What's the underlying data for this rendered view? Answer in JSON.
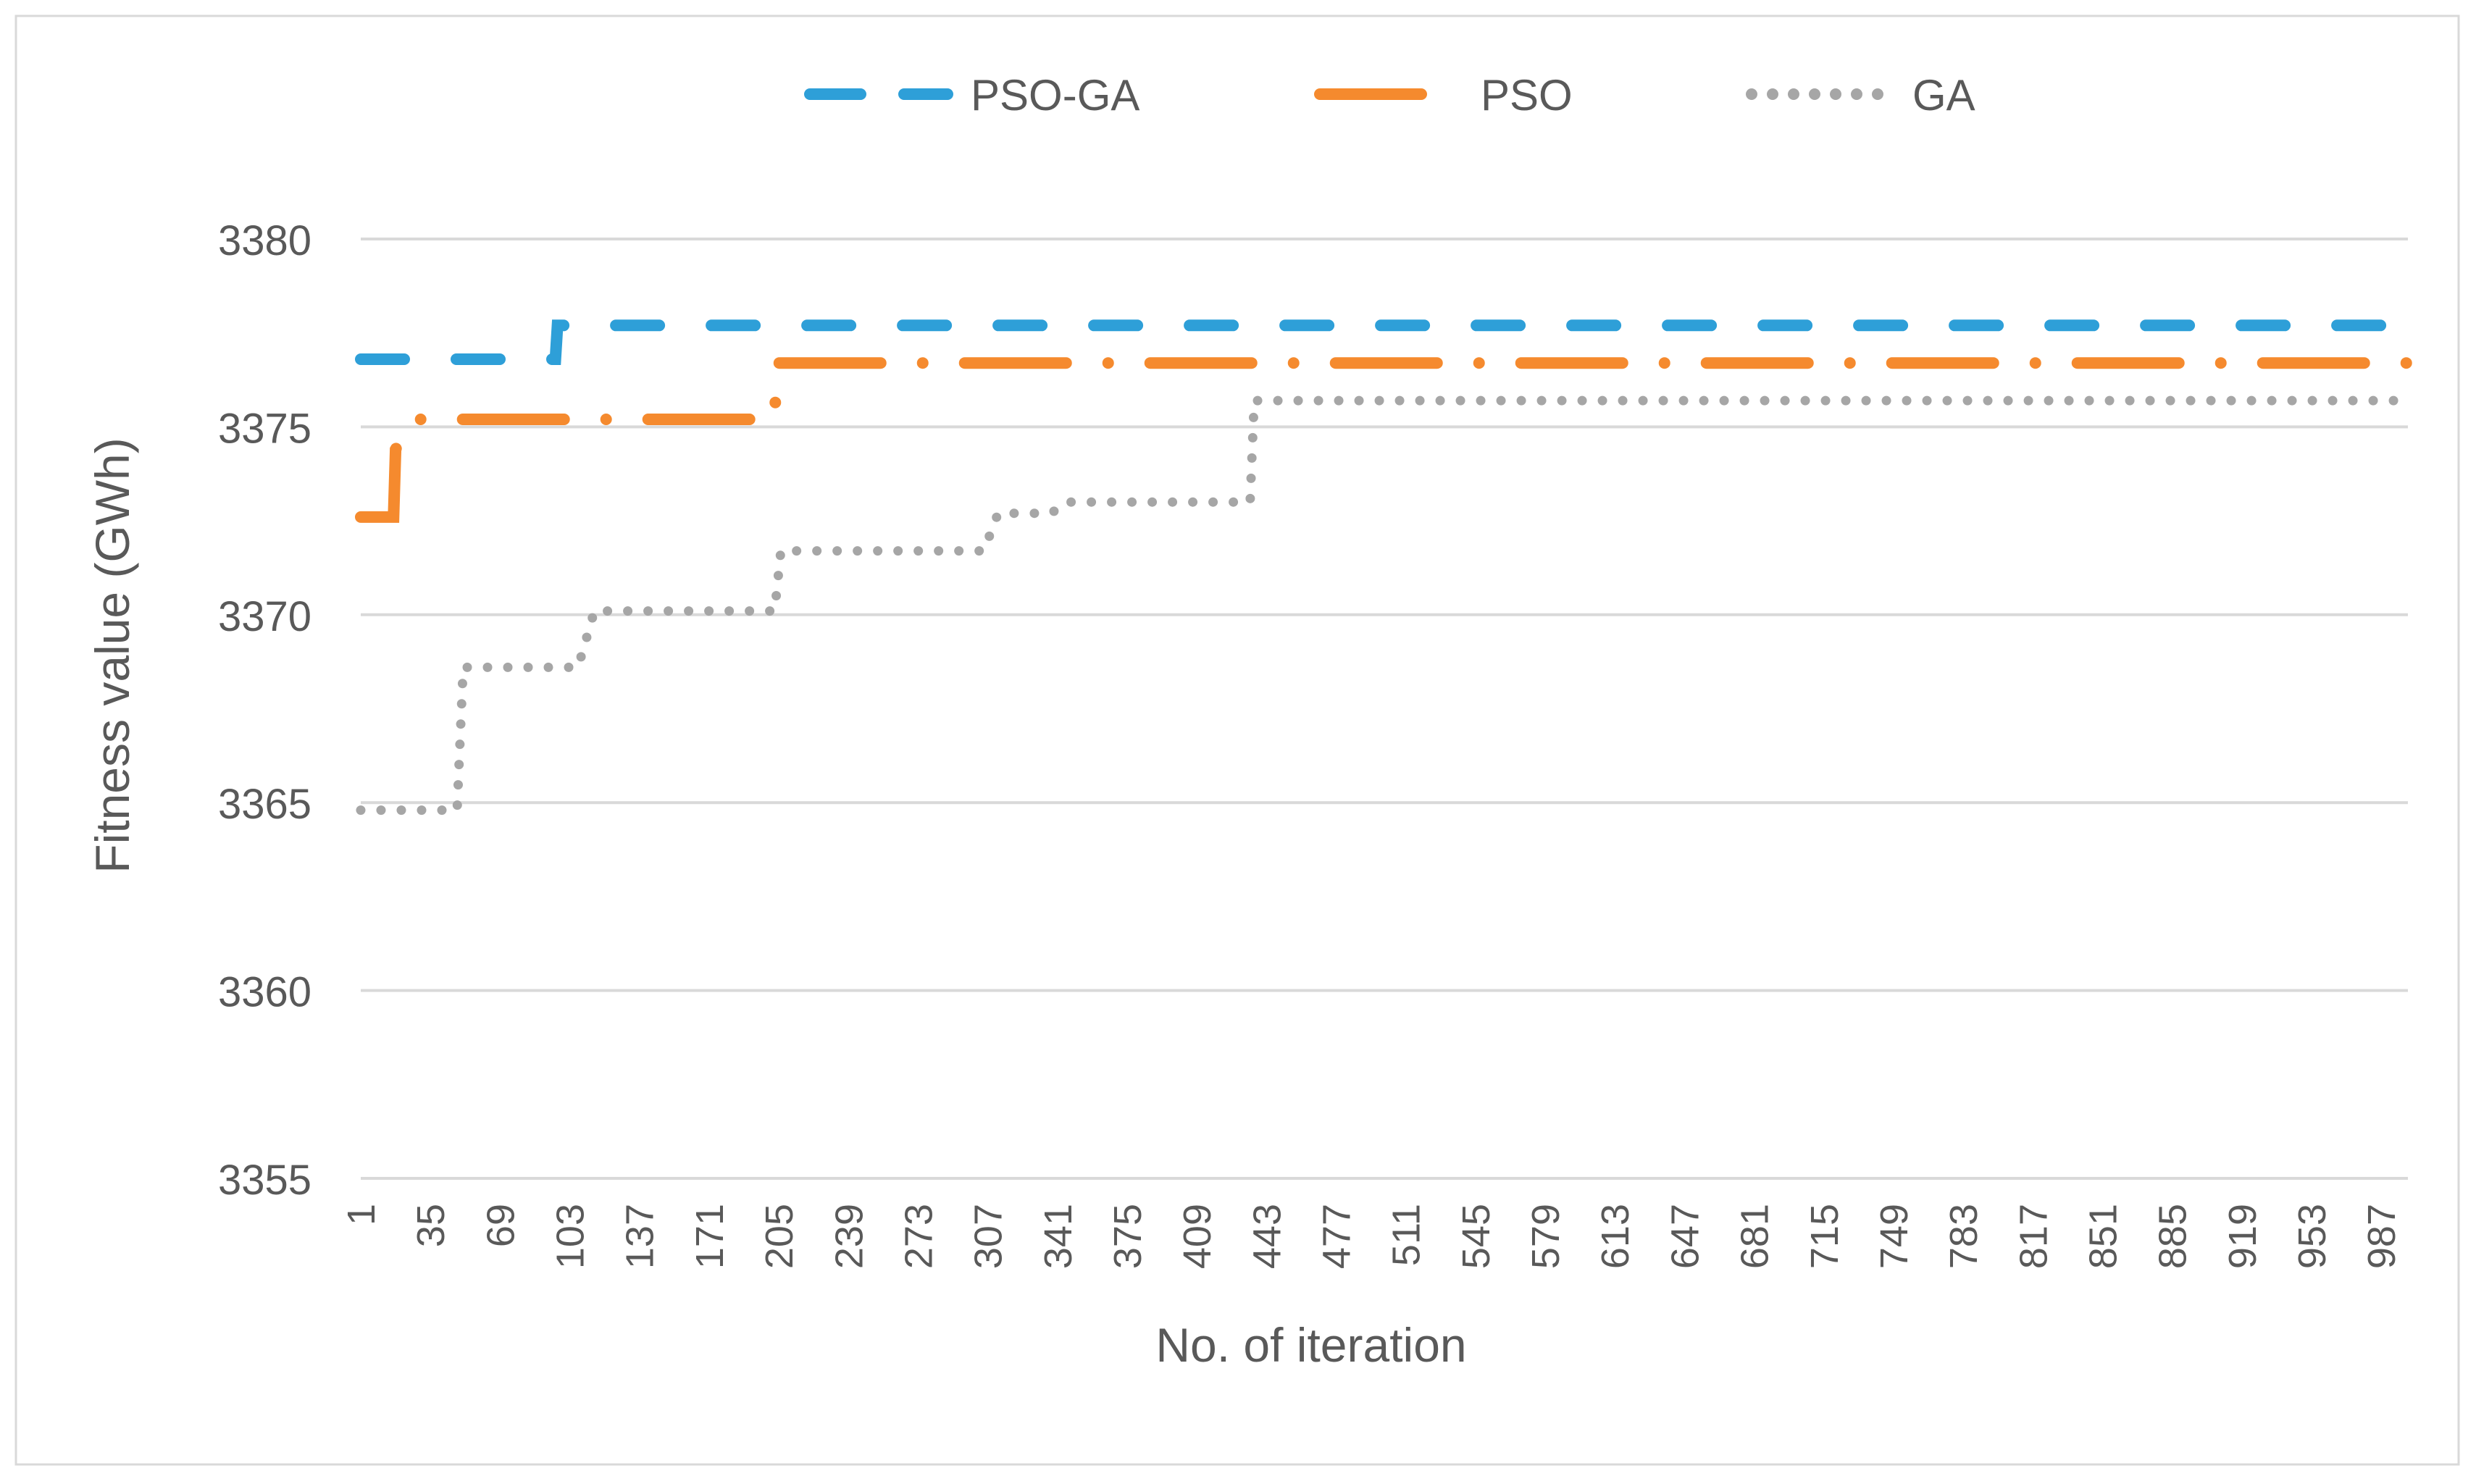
{
  "chart_data": {
    "type": "line",
    "title": "",
    "xlabel": "No. of iteration",
    "ylabel": "Fitness value (GWh)",
    "ylim": [
      3355,
      3380
    ],
    "xlim": [
      1,
      1000
    ],
    "y_ticks": [
      "3355",
      "3360",
      "3365",
      "3370",
      "3375",
      "3380"
    ],
    "x_ticks": [
      "1",
      "35",
      "69",
      "103",
      "137",
      "171",
      "205",
      "239",
      "273",
      "307",
      "341",
      "375",
      "409",
      "443",
      "477",
      "511",
      "545",
      "579",
      "613",
      "647",
      "681",
      "715",
      "749",
      "783",
      "817",
      "851",
      "885",
      "919",
      "953",
      "987"
    ],
    "grid": true,
    "legend_position": "top",
    "series": [
      {
        "name": "PSO-GA",
        "color": "#2E9FD8",
        "style": "dashed",
        "points": [
          [
            1,
            3376.8
          ],
          [
            96,
            3376.8
          ],
          [
            97,
            3377.7
          ],
          [
            1000,
            3377.7
          ]
        ]
      },
      {
        "name": "PSO",
        "color": "#F58A2E",
        "style": "dash-dot",
        "points": [
          [
            1,
            3372.6
          ],
          [
            17,
            3372.6
          ],
          [
            18,
            3374.4
          ],
          [
            26,
            3375.2
          ],
          [
            203,
            3375.2
          ],
          [
            204,
            3376.7
          ],
          [
            1000,
            3376.7
          ]
        ]
      },
      {
        "name": "GA",
        "color": "#A6A6A6",
        "style": "dotted",
        "points": [
          [
            1,
            3364.8
          ],
          [
            48,
            3364.8
          ],
          [
            51,
            3368.6
          ],
          [
            107,
            3368.6
          ],
          [
            115,
            3370.1
          ],
          [
            203,
            3370.1
          ],
          [
            206,
            3371.7
          ],
          [
            305,
            3371.7
          ],
          [
            312,
            3372.7
          ],
          [
            338,
            3372.7
          ],
          [
            345,
            3373.0
          ],
          [
            435,
            3373.0
          ],
          [
            437,
            3375.7
          ],
          [
            1000,
            3375.7
          ]
        ]
      }
    ]
  }
}
